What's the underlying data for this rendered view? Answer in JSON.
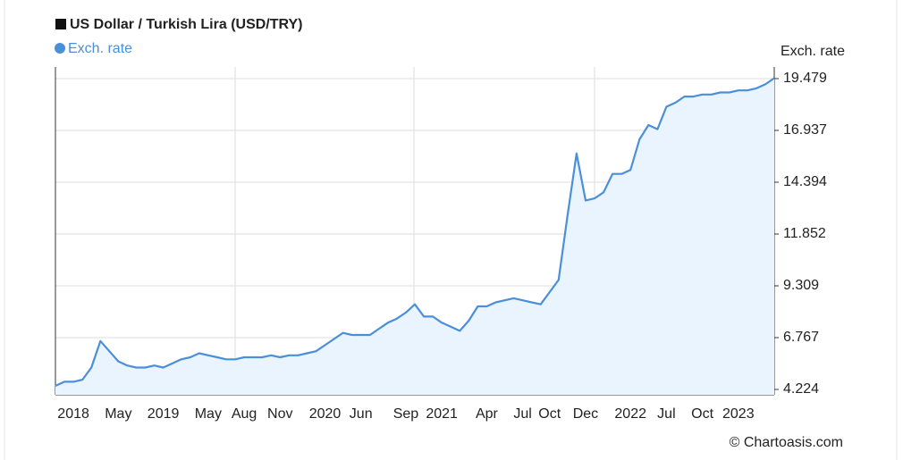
{
  "chart_data": {
    "type": "line",
    "title": "US Dollar / Turkish Lira (USD/TRY)",
    "y_label": "Exch. rate",
    "credit": "© Chartoasis.com",
    "categories": [
      null,
      null,
      "2018",
      null,
      null,
      null,
      null,
      "May",
      null,
      null,
      null,
      null,
      "2019",
      null,
      null,
      null,
      null,
      "May",
      null,
      null,
      null,
      "Aug",
      null,
      null,
      null,
      "Nov",
      null,
      null,
      null,
      null,
      "2020",
      null,
      null,
      null,
      "Jun",
      null,
      null,
      null,
      null,
      "Sep",
      null,
      null,
      null,
      "2021",
      null,
      null,
      null,
      null,
      "Apr",
      null,
      null,
      null,
      "Jul",
      null,
      null,
      "Oct",
      null,
      null,
      null,
      "Dec",
      null,
      null,
      null,
      null,
      "2022",
      null,
      null,
      null,
      "Jul",
      null,
      null,
      null,
      "Oct",
      null,
      null,
      null,
      "2023",
      null,
      null,
      null,
      null
    ],
    "series": [
      {
        "name": "Exch. rate",
        "color": "#4a8fd9",
        "values": [
          4.4,
          4.6,
          4.6,
          4.7,
          5.3,
          6.6,
          6.1,
          5.6,
          5.4,
          5.3,
          5.3,
          5.4,
          5.3,
          5.5,
          5.7,
          5.8,
          6.0,
          5.9,
          5.8,
          5.7,
          5.7,
          5.8,
          5.8,
          5.8,
          5.9,
          5.8,
          5.9,
          5.9,
          6.0,
          6.1,
          6.4,
          6.7,
          7.0,
          6.9,
          6.9,
          6.9,
          7.2,
          7.5,
          7.7,
          8.0,
          8.4,
          7.8,
          7.8,
          7.5,
          7.3,
          7.1,
          7.6,
          8.3,
          8.3,
          8.5,
          8.6,
          8.7,
          8.6,
          8.5,
          8.4,
          9.0,
          9.6,
          12.8,
          15.8,
          13.5,
          13.6,
          13.9,
          14.8,
          14.8,
          15.0,
          16.5,
          17.2,
          17.0,
          18.1,
          18.3,
          18.6,
          18.6,
          18.7,
          18.7,
          18.8,
          18.8,
          18.9,
          18.9,
          19.0,
          19.2,
          19.5
        ]
      }
    ],
    "ylim": [
      4.224,
      19.479
    ],
    "yticks": [
      4.224,
      6.767,
      9.309,
      11.852,
      14.394,
      16.937,
      19.479
    ],
    "grid": true
  }
}
